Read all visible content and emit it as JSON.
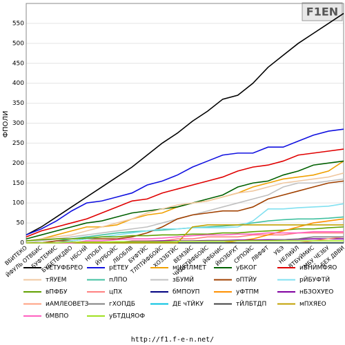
{
  "chart_data": {
    "type": "line",
    "ylabel": "ФПОЛИ",
    "logo": "F1EN",
    "footer": "http://f1.f-e-n.net/",
    "categories": [
      "ВБИТЕКО",
      "ЙФУЛЬ ОТВБИС",
      "БУФТЕМИС",
      "БУБЕТВКДВО",
      "НБСНЙ",
      "НПОБЛ",
      "ЙУРБОЙС",
      "ЛБОБЛВ",
      "БУФТЙС",
      "ТЛПТЙФБОЙС",
      "ХОЗЗБТЙС",
      "ВЕМЗЙС",
      "ЧИДЕТЙФБОЙС",
      "ЙФБНИС",
      "ЙЮЗБРХТ",
      "СРПОЙС",
      "ЛВФФТ",
      "УБЭ",
      "НЕЛИЙЛ",
      "ВТБУЙМИС",
      "МБУ ЧЕЗБУ",
      "БЕХ ДВВИ"
    ],
    "ylim": [
      0,
      600
    ],
    "yticks": [
      0,
      50,
      100,
      150,
      200,
      250,
      300,
      350,
      400,
      450,
      500,
      550
    ],
    "grid": true,
    "series": [
      {
        "name": "чЕТУФБРЕО",
        "color": "#000000",
        "values": [
          20,
          40,
          65,
          90,
          115,
          140,
          165,
          190,
          220,
          250,
          275,
          305,
          330,
          360,
          370,
          400,
          440,
          470,
          500,
          525,
          550,
          575
        ]
      },
      {
        "name": "рЕТЕУ",
        "color": "#1010e0",
        "values": [
          20,
          35,
          55,
          80,
          100,
          105,
          115,
          125,
          145,
          155,
          170,
          190,
          205,
          220,
          225,
          225,
          240,
          240,
          255,
          270,
          280,
          285
        ]
      },
      {
        "name": "мШПЛМЕТ",
        "color": "#f0a000",
        "values": [
          5,
          10,
          20,
          30,
          40,
          40,
          45,
          60,
          70,
          75,
          90,
          100,
          105,
          115,
          125,
          140,
          150,
          160,
          165,
          170,
          180,
          205
        ]
      },
      {
        "name": "уБКОГ",
        "color": "#006000",
        "values": [
          10,
          20,
          30,
          40,
          50,
          55,
          65,
          75,
          80,
          85,
          90,
          100,
          110,
          120,
          140,
          150,
          155,
          170,
          180,
          195,
          200,
          205
        ]
      },
      {
        "name": "иБНЙМФЯО",
        "color": "#e00000",
        "values": [
          15,
          30,
          40,
          50,
          60,
          75,
          90,
          105,
          110,
          125,
          135,
          145,
          155,
          165,
          180,
          190,
          195,
          205,
          220,
          225,
          230,
          235
        ]
      },
      {
        "name": "тЯУЕМ",
        "color": "#f0c8a0",
        "values": [
          5,
          10,
          15,
          20,
          30,
          40,
          50,
          60,
          75,
          85,
          95,
          100,
          105,
          115,
          125,
          130,
          140,
          150,
          155,
          160,
          165,
          175
        ]
      },
      {
        "name": "пЛПО",
        "color": "#40c0a0",
        "values": [
          0,
          0,
          5,
          10,
          15,
          20,
          25,
          28,
          30,
          32,
          35,
          38,
          40,
          42,
          45,
          50,
          55,
          58,
          60,
          60,
          62,
          65
        ]
      },
      {
        "name": "зБУМЙ",
        "color": "#c0c0c0",
        "values": [
          0,
          5,
          10,
          15,
          20,
          25,
          30,
          35,
          40,
          50,
          60,
          70,
          80,
          90,
          100,
          110,
          120,
          140,
          150,
          150,
          155,
          160
        ]
      },
      {
        "name": "оПТЙУ",
        "color": "#a04000",
        "values": [
          0,
          0,
          5,
          5,
          10,
          10,
          10,
          15,
          25,
          40,
          60,
          70,
          75,
          80,
          80,
          90,
          110,
          120,
          130,
          140,
          150,
          155
        ]
      },
      {
        "name": "рЙБУФТЙ",
        "color": "#80e0f0",
        "values": [
          0,
          0,
          0,
          5,
          10,
          15,
          20,
          25,
          30,
          35,
          35,
          38,
          38,
          38,
          40,
          55,
          85,
          85,
          88,
          90,
          92,
          98
        ]
      },
      {
        "name": "вПФБУ",
        "color": "#60a000",
        "values": [
          5,
          8,
          10,
          10,
          12,
          15,
          15,
          18,
          18,
          20,
          20,
          22,
          22,
          25,
          25,
          28,
          30,
          32,
          35,
          35,
          38,
          40
        ]
      },
      {
        "name": "цПХ",
        "color": "#ff8080",
        "values": [
          0,
          0,
          0,
          0,
          0,
          0,
          0,
          5,
          5,
          5,
          10,
          10,
          15,
          15,
          15,
          20,
          20,
          20,
          25,
          25,
          25,
          25
        ]
      },
      {
        "name": "бМПОУП",
        "color": "#000080",
        "values": [
          0,
          0,
          0,
          0,
          0,
          0,
          0,
          0,
          0,
          0,
          0,
          0,
          0,
          0,
          0,
          0,
          0,
          0,
          0,
          0,
          0,
          0
        ]
      },
      {
        "name": "уФТПМ",
        "color": "#ff9000",
        "values": [
          0,
          0,
          0,
          0,
          0,
          0,
          0,
          0,
          0,
          0,
          0,
          0,
          0,
          0,
          5,
          10,
          20,
          30,
          40,
          50,
          55,
          60
        ]
      },
      {
        "name": "нБЗОХУЕО",
        "color": "#8000a0",
        "values": [
          0,
          0,
          0,
          0,
          0,
          2,
          2,
          4,
          4,
          5,
          5,
          5,
          6,
          6,
          7,
          7,
          8,
          8,
          9,
          10,
          10,
          10
        ]
      },
      {
        "name": "иАМЛЕОВЕТЗ",
        "color": "#ffa080",
        "values": [
          0,
          0,
          0,
          0,
          0,
          0,
          0,
          0,
          0,
          0,
          0,
          0,
          0,
          0,
          0,
          0,
          0,
          0,
          0,
          5,
          10,
          15
        ]
      },
      {
        "name": "гХОПДБ",
        "color": "#808080",
        "values": [
          0,
          0,
          0,
          0,
          2,
          2,
          2,
          3,
          3,
          3,
          4,
          4,
          5,
          5,
          5,
          6,
          6,
          8,
          10,
          15,
          15,
          15
        ]
      },
      {
        "name": "ДЕ чТЙКУ",
        "color": "#00c0e0",
        "values": [
          0,
          0,
          0,
          0,
          0,
          0,
          0,
          0,
          0,
          0,
          0,
          0,
          0,
          0,
          0,
          0,
          0,
          0,
          0,
          0,
          0,
          0
        ]
      },
      {
        "name": "тЙЛБТДП",
        "color": "#404040",
        "values": [
          0,
          0,
          0,
          0,
          0,
          0,
          0,
          0,
          0,
          0,
          0,
          0,
          0,
          0,
          0,
          0,
          0,
          0,
          0,
          0,
          0,
          0
        ]
      },
      {
        "name": "мПХЯЕО",
        "color": "#c0a000",
        "values": [
          0,
          0,
          0,
          0,
          0,
          0,
          0,
          0,
          0,
          0,
          0,
          40,
          45,
          45,
          45,
          45,
          45,
          45,
          45,
          45,
          45,
          45
        ]
      },
      {
        "name": "бМВПО",
        "color": "#ff60c0",
        "values": [
          0,
          0,
          0,
          0,
          5,
          5,
          8,
          10,
          10,
          12,
          15,
          18,
          20,
          20,
          22,
          22,
          25,
          25,
          25,
          28,
          28,
          28
        ]
      },
      {
        "name": "уБТДЦЯОФ",
        "color": "#a0e020",
        "values": [
          0,
          0,
          0,
          2,
          2,
          2,
          3,
          3,
          3,
          3,
          4,
          4,
          4,
          4,
          5,
          5,
          5,
          5,
          5,
          5,
          5,
          5
        ]
      }
    ]
  }
}
